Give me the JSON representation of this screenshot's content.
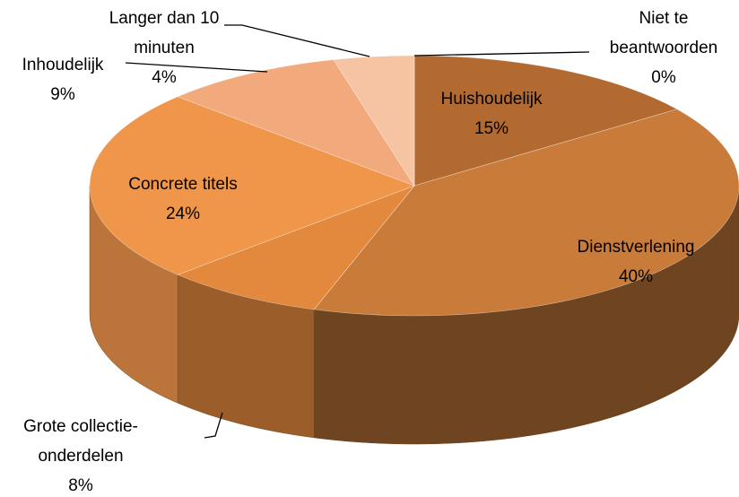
{
  "chart_data": {
    "type": "pie",
    "categories": [
      "Huishoudelijk",
      "Dienstverlening",
      "Grote collectie-onderdelen",
      "Concrete titels",
      "Inhoudelijk",
      "Langer dan 10 minuten",
      "Niet te beantwoorden"
    ],
    "values": [
      15,
      40,
      8,
      24,
      9,
      4,
      0
    ],
    "value_labels": [
      "15%",
      "40%",
      "8%",
      "24%",
      "9%",
      "4%",
      "0%"
    ],
    "colors": [
      "#b36a30",
      "#c97b3a",
      "#e2893d",
      "#ef964a",
      "#f2a97b",
      "#f6c3a3",
      "#f9dccd"
    ]
  }
}
